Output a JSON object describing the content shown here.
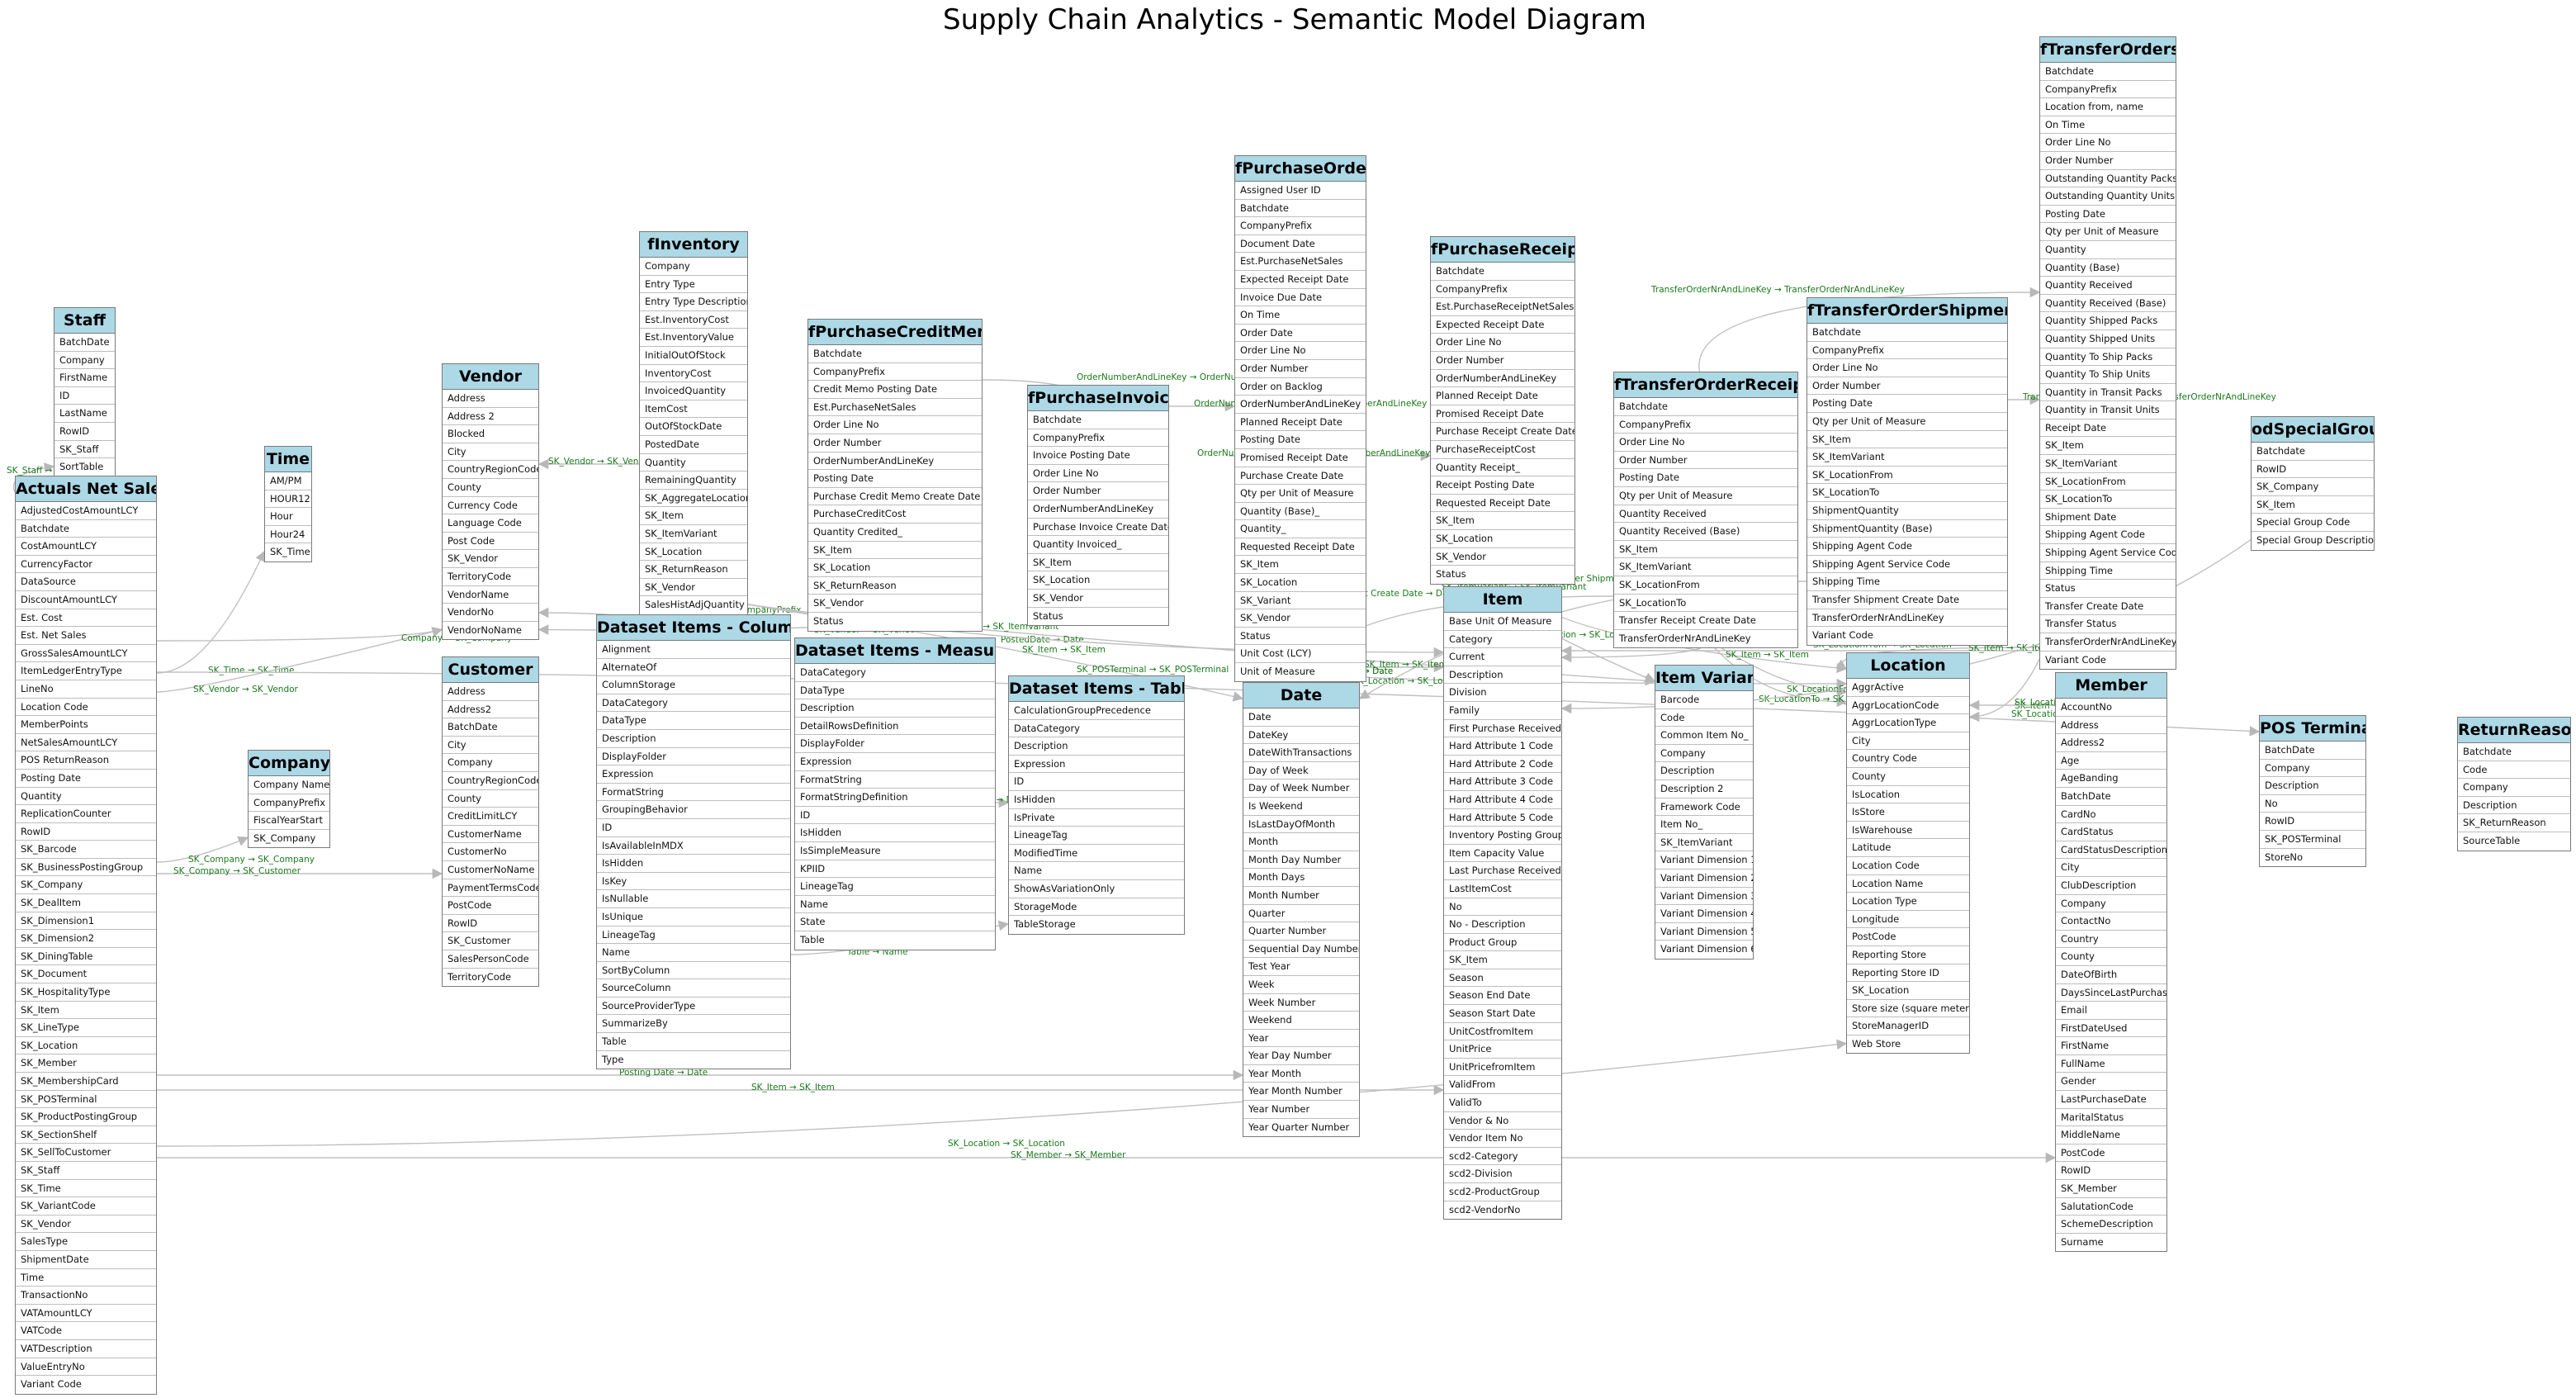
{
  "title": "Supply Chain Analytics - Semantic Model Diagram",
  "colors": {
    "header_fill": "#add8e6",
    "border": "#7a7a7a",
    "edge": "#c0c0c0",
    "edge_label": "#1a7a1a"
  },
  "tables": [
    {
      "name": "Staff",
      "columns": [
        "BatchDate",
        "Company",
        "FirstName",
        "ID",
        "LastName",
        "RowID",
        "SK_Staff",
        "SortTable"
      ]
    },
    {
      "name": "Actuals Net Sales",
      "columns": [
        "AdjustedCostAmountLCY",
        "Batchdate",
        "CostAmountLCY",
        "CurrencyFactor",
        "DataSource",
        "DiscountAmountLCY",
        "Est. Cost",
        "Est. Net Sales",
        "GrossSalesAmountLCY",
        "ItemLedgerEntryType",
        "LineNo",
        "Location Code",
        "MemberPoints",
        "NetSalesAmountLCY",
        "POS ReturnReason",
        "Posting Date",
        "Quantity",
        "ReplicationCounter",
        "RowID",
        "SK_Barcode",
        "SK_BusinessPostingGroup",
        "SK_Company",
        "SK_DealItem",
        "SK_Dimension1",
        "SK_Dimension2",
        "SK_DiningTable",
        "SK_Document",
        "SK_HospitalityType",
        "SK_Item",
        "SK_LineType",
        "SK_Location",
        "SK_Member",
        "SK_MembershipCard",
        "SK_POSTerminal",
        "SK_ProductPostingGroup",
        "SK_SectionShelf",
        "SK_SellToCustomer",
        "SK_Staff",
        "SK_Time",
        "SK_VariantCode",
        "SK_Vendor",
        "SalesType",
        "ShipmentDate",
        "Time",
        "TransactionNo",
        "VATAmountLCY",
        "VATCode",
        "VATDescription",
        "ValueEntryNo",
        "Variant Code"
      ]
    },
    {
      "name": "Time",
      "columns": [
        "AM/PM",
        "HOUR12",
        "Hour",
        "Hour24",
        "SK_Time"
      ]
    },
    {
      "name": "Company",
      "columns": [
        "Company Name",
        "CompanyPrefix",
        "FiscalYearStart",
        "SK_Company"
      ]
    },
    {
      "name": "Vendor",
      "columns": [
        "Address",
        "Address 2",
        "Blocked",
        "City",
        "CountryRegionCode",
        "County",
        "Currency Code",
        "Language Code",
        "Post Code",
        "SK_Vendor",
        "TerritoryCode",
        "VendorName",
        "VendorNo",
        "VendorNoName"
      ]
    },
    {
      "name": "Customer",
      "columns": [
        "Address",
        "Address2",
        "BatchDate",
        "City",
        "Company",
        "CountryRegionCode",
        "County",
        "CreditLimitLCY",
        "CustomerName",
        "CustomerNo",
        "CustomerNoName",
        "PaymentTermsCode",
        "PostCode",
        "RowID",
        "SK_Customer",
        "SalesPersonCode",
        "TerritoryCode"
      ]
    },
    {
      "name": "fInventory",
      "columns": [
        "Company",
        "Entry Type",
        "Entry Type Description",
        "Est.InventoryCost",
        "Est.InventoryValue",
        "InitialOutOfStock",
        "InventoryCost",
        "InvoicedQuantity",
        "ItemCost",
        "OutOfStockDate",
        "PostedDate",
        "Quantity",
        "RemainingQuantity",
        "SK_AggregateLocation",
        "SK_Item",
        "SK_ItemVariant",
        "SK_Location",
        "SK_ReturnReason",
        "SK_Vendor",
        "SalesHistAdjQuantity"
      ]
    },
    {
      "name": "Dataset Items - Columns",
      "columns": [
        "Alignment",
        "AlternateOf",
        "ColumnStorage",
        "DataCategory",
        "DataType",
        "Description",
        "DisplayFolder",
        "Expression",
        "FormatString",
        "GroupingBehavior",
        "ID",
        "IsAvailableInMDX",
        "IsHidden",
        "IsKey",
        "IsNullable",
        "IsUnique",
        "LineageTag",
        "Name",
        "SortByColumn",
        "SourceColumn",
        "SourceProviderType",
        "SummarizeBy",
        "Table",
        "Type"
      ]
    },
    {
      "name": "fPurchaseCreditMemo",
      "columns": [
        "Batchdate",
        "CompanyPrefix",
        "Credit Memo Posting Date",
        "Est.PurchaseNetSales",
        "Order Line No",
        "Order Number",
        "OrderNumberAndLineKey",
        "Posting Date",
        "Purchase Credit Memo Create Date",
        "PurchaseCreditCost",
        "Quantity Credited_",
        "SK_Item",
        "SK_Location",
        "SK_ReturnReason",
        "SK_Vendor",
        "Status"
      ]
    },
    {
      "name": "Dataset Items - Measures",
      "columns": [
        "DataCategory",
        "DataType",
        "Description",
        "DetailRowsDefinition",
        "DisplayFolder",
        "Expression",
        "FormatString",
        "FormatStringDefinition",
        "ID",
        "IsHidden",
        "IsSimpleMeasure",
        "KPIID",
        "LineageTag",
        "Name",
        "State",
        "Table"
      ]
    },
    {
      "name": "fPurchaseInvoice",
      "columns": [
        "Batchdate",
        "CompanyPrefix",
        "Invoice Posting Date",
        "Order Line No",
        "Order Number",
        "OrderNumberAndLineKey",
        "Purchase Invoice Create Date",
        "Quantity Invoiced_",
        "SK_Item",
        "SK_Location",
        "SK_Vendor",
        "Status"
      ]
    },
    {
      "name": "Dataset Items - Tables",
      "columns": [
        "CalculationGroupPrecedence",
        "DataCategory",
        "Description",
        "Expression",
        "ID",
        "IsHidden",
        "IsPrivate",
        "LineageTag",
        "ModifiedTime",
        "Name",
        "ShowAsVariationOnly",
        "StorageMode",
        "TableStorage"
      ]
    },
    {
      "name": "fPurchaseOrders",
      "columns": [
        "Assigned User ID",
        "Batchdate",
        "CompanyPrefix",
        "Document Date",
        "Est.PurchaseNetSales",
        "Expected Receipt Date",
        "Invoice Due Date",
        "On Time",
        "Order Date",
        "Order Line No",
        "Order Number",
        "Order on Backlog",
        "OrderNumberAndLineKey",
        "Planned Receipt Date",
        "Posting Date",
        "Promised Receipt Date",
        "Purchase Create Date",
        "Qty per Unit of Measure",
        "Quantity (Base)_",
        "Quantity_",
        "Requested Receipt Date",
        "SK_Item",
        "SK_Location",
        "SK_Variant",
        "SK_Vendor",
        "Status",
        "Unit Cost (LCY)",
        "Unit of Measure"
      ]
    },
    {
      "name": "Date",
      "columns": [
        "Date",
        "DateKey",
        "DateWithTransactions",
        "Day of Week",
        "Day of Week Number",
        "Is Weekend",
        "IsLastDayOfMonth",
        "Month",
        "Month Day Number",
        "Month Days",
        "Month Number",
        "Quarter",
        "Quarter Number",
        "Sequential Day Number",
        "Test Year",
        "Week",
        "Week Number",
        "Weekend",
        "Year",
        "Year Day Number",
        "Year Month",
        "Year Month Number",
        "Year Number",
        "Year Quarter Number"
      ]
    },
    {
      "name": "fPurchaseReceipts",
      "columns": [
        "Batchdate",
        "CompanyPrefix",
        "Est.PurchaseReceiptNetSales",
        "Expected Receipt Date",
        "Order Line No",
        "Order Number",
        "OrderNumberAndLineKey",
        "Planned Receipt Date",
        "Promised Receipt Date",
        "Purchase Receipt Create Date",
        "PurchaseReceiptCost",
        "Quantity Receipt_",
        "Receipt Posting Date",
        "Requested Receipt Date",
        "SK_Item",
        "SK_Location",
        "SK_Vendor",
        "Status"
      ]
    },
    {
      "name": "Item",
      "columns": [
        "Base Unit Of Measure",
        "Category",
        "Current",
        "Description",
        "Division",
        "Family",
        "First Purchase Received",
        "Hard Attribute 1 Code",
        "Hard Attribute 2 Code",
        "Hard Attribute 3 Code",
        "Hard Attribute 4 Code",
        "Hard Attribute 5 Code",
        "Inventory Posting Group",
        "Item Capacity Value",
        "Last Purchase Received",
        "LastItemCost",
        "No",
        "No - Description",
        "Product Group",
        "SK_Item",
        "Season",
        "Season End Date",
        "Season Start Date",
        "UnitCostfromItem",
        "UnitPrice",
        "UnitPricefromItem",
        "ValidFrom",
        "ValidTo",
        "Vendor & No",
        "Vendor Item No",
        "scd2-Category",
        "scd2-Division",
        "scd2-ProductGroup",
        "scd2-VendorNo"
      ]
    },
    {
      "name": "fTransferOrderReceipts",
      "columns": [
        "Batchdate",
        "CompanyPrefix",
        "Order Line No",
        "Order Number",
        "Posting Date",
        "Qty per Unit of Measure",
        "Quantity Received",
        "Quantity Received (Base)",
        "SK_Item",
        "SK_ItemVariant",
        "SK_LocationFrom",
        "SK_LocationTo",
        "Transfer Receipt Create Date",
        "TransferOrderNrAndLineKey"
      ]
    },
    {
      "name": "Item Variant",
      "columns": [
        "Barcode",
        "Code",
        "Common Item No_",
        "Company",
        "Description",
        "Description 2",
        "Framework Code",
        "Item No_",
        "SK_ItemVariant",
        "Variant Dimension 1",
        "Variant Dimension 2",
        "Variant Dimension 3",
        "Variant Dimension 4",
        "Variant Dimension 5",
        "Variant Dimension 6"
      ]
    },
    {
      "name": "fTransferOrderShipments",
      "columns": [
        "Batchdate",
        "CompanyPrefix",
        "Order Line No",
        "Order Number",
        "Posting Date",
        "Qty per Unit of Measure",
        "SK_Item",
        "SK_ItemVariant",
        "SK_LocationFrom",
        "SK_LocationTo",
        "ShipmentQuantity",
        "ShipmentQuantity (Base)",
        "Shipping Agent Code",
        "Shipping Agent Service Code",
        "Shipping Time",
        "Transfer Shipment Create Date",
        "TransferOrderNrAndLineKey",
        "Variant Code"
      ]
    },
    {
      "name": "Location",
      "columns": [
        "AggrActive",
        "AggrLocationCode",
        "AggrLocationType",
        "City",
        "Country Code",
        "County",
        "IsLocation",
        "IsStore",
        "IsWarehouse",
        "Latitude",
        "Location Code",
        "Location Name",
        "Location Type",
        "Longitude",
        "PostCode",
        "Reporting Store",
        "Reporting Store ID",
        "SK_Location",
        "Store size (square meters)",
        "StoreManagerID",
        "Web Store"
      ]
    },
    {
      "name": "fTransferOrders",
      "columns": [
        "Batchdate",
        "CompanyPrefix",
        "Location from, name",
        "On Time",
        "Order Line No",
        "Order Number",
        "Outstanding Quantity Packs",
        "Outstanding Quantity Units",
        "Posting Date",
        "Qty per Unit of Measure",
        "Quantity",
        "Quantity (Base)",
        "Quantity Received",
        "Quantity Received (Base)",
        "Quantity Shipped Packs",
        "Quantity Shipped Units",
        "Quantity To Ship Packs",
        "Quantity To Ship Units",
        "Quantity in Transit Packs",
        "Quantity in Transit Units",
        "Receipt Date",
        "SK_Item",
        "SK_ItemVariant",
        "SK_LocationFrom",
        "SK_LocationTo",
        "Shipment Date",
        "Shipping Agent Code",
        "Shipping Agent Service Code",
        "Shipping Time",
        "Status",
        "Transfer Create Date",
        "Transfer Status",
        "TransferOrderNrAndLineKey",
        "Variant Code"
      ]
    },
    {
      "name": "Member",
      "columns": [
        "AccountNo",
        "Address",
        "Address2",
        "Age",
        "AgeBanding",
        "BatchDate",
        "CardNo",
        "CardStatus",
        "CardStatusDescription",
        "City",
        "ClubDescription",
        "Company",
        "ContactNo",
        "Country",
        "County",
        "DateOfBirth",
        "DaysSinceLastPurchase",
        "Email",
        "FirstDateUsed",
        "FirstName",
        "FullName",
        "Gender",
        "LastPurchaseDate",
        "MaritalStatus",
        "MiddleName",
        "PostCode",
        "RowID",
        "SK_Member",
        "SalutationCode",
        "SchemeDescription",
        "Surname"
      ]
    },
    {
      "name": "odSpecialGroup",
      "columns": [
        "Batchdate",
        "RowID",
        "SK_Company",
        "SK_Item",
        "Special Group Code",
        "Special Group Description"
      ]
    },
    {
      "name": "POS Terminal",
      "columns": [
        "BatchDate",
        "Company",
        "Description",
        "No",
        "RowID",
        "SK_POSTerminal",
        "StoreNo"
      ]
    },
    {
      "name": "ReturnReason",
      "columns": [
        "Batchdate",
        "Code",
        "Company",
        "Description",
        "SK_ReturnReason",
        "SourceTable"
      ]
    }
  ],
  "relationships": [
    {
      "label": "SK_Staff → SK_Staff"
    },
    {
      "label": "SK_Time → SK_Time"
    },
    {
      "label": "SK_Vendor → SK_Vendor"
    },
    {
      "label": "Company → SK_Company"
    },
    {
      "label": "SK_Company → SK_Company"
    },
    {
      "label": "SK_Company → SK_Customer"
    },
    {
      "label": "SK_Vendor → SK_Vendor"
    },
    {
      "label": "CompanyPrefix → CompanyPrefix"
    },
    {
      "label": "SK_Vendor → SK_Vendor"
    },
    {
      "label": "SK_VariantCode → SK_ItemVariant"
    },
    {
      "label": "PostedDate → Date"
    },
    {
      "label": "SK_Item → SK_Item"
    },
    {
      "label": "SK_POSTerminal → SK_POSTerminal"
    },
    {
      "label": "Table → Name"
    },
    {
      "label": "Table → Name"
    },
    {
      "label": "Posting Date → Date"
    },
    {
      "label": "SK_Item → SK_Item"
    },
    {
      "label": "SK_Location → SK_Location"
    },
    {
      "label": "SK_Member → SK_Member"
    },
    {
      "label": "OrderNumberAndLineKey → OrderNumberAndLineKey"
    },
    {
      "label": "OrderNumberAndLineKey → OrderNumberAndLineKey"
    },
    {
      "label": "OrderNumberAndLineKey → OrderNumberAndLineKey"
    },
    {
      "label": "Transfer Receipt Create Date → Date"
    },
    {
      "label": "Posting Date → Date"
    },
    {
      "label": "SK_Item → SK_Item"
    },
    {
      "label": "SK_Location → SK_Location"
    },
    {
      "label": "Transfer Shipment Create Date → Date"
    },
    {
      "label": "SK_ItemVariant → SK_ItemVariant"
    },
    {
      "label": "SK_Location → SK_Location"
    },
    {
      "label": "SK_LocationFrom → SK_Location"
    },
    {
      "label": "SK_LocationTo → SK_Location"
    },
    {
      "label": "TransferOrderNrAndLineKey → TransferOrderNrAndLineKey"
    },
    {
      "label": "TransferOrderNrAndLineKey → TransferOrderNrAndLineKey"
    },
    {
      "label": "SK_LocationFrom → SK_Location"
    },
    {
      "label": "SK_Item → SK_Item"
    },
    {
      "label": "SK_LocationTo → SK_Location"
    },
    {
      "label": "SK_Item → SK_Item"
    },
    {
      "label": "Posting Date → Date"
    },
    {
      "label": "SK_Item → SK_Item"
    },
    {
      "label": "SK_Location → SK_Location"
    }
  ]
}
